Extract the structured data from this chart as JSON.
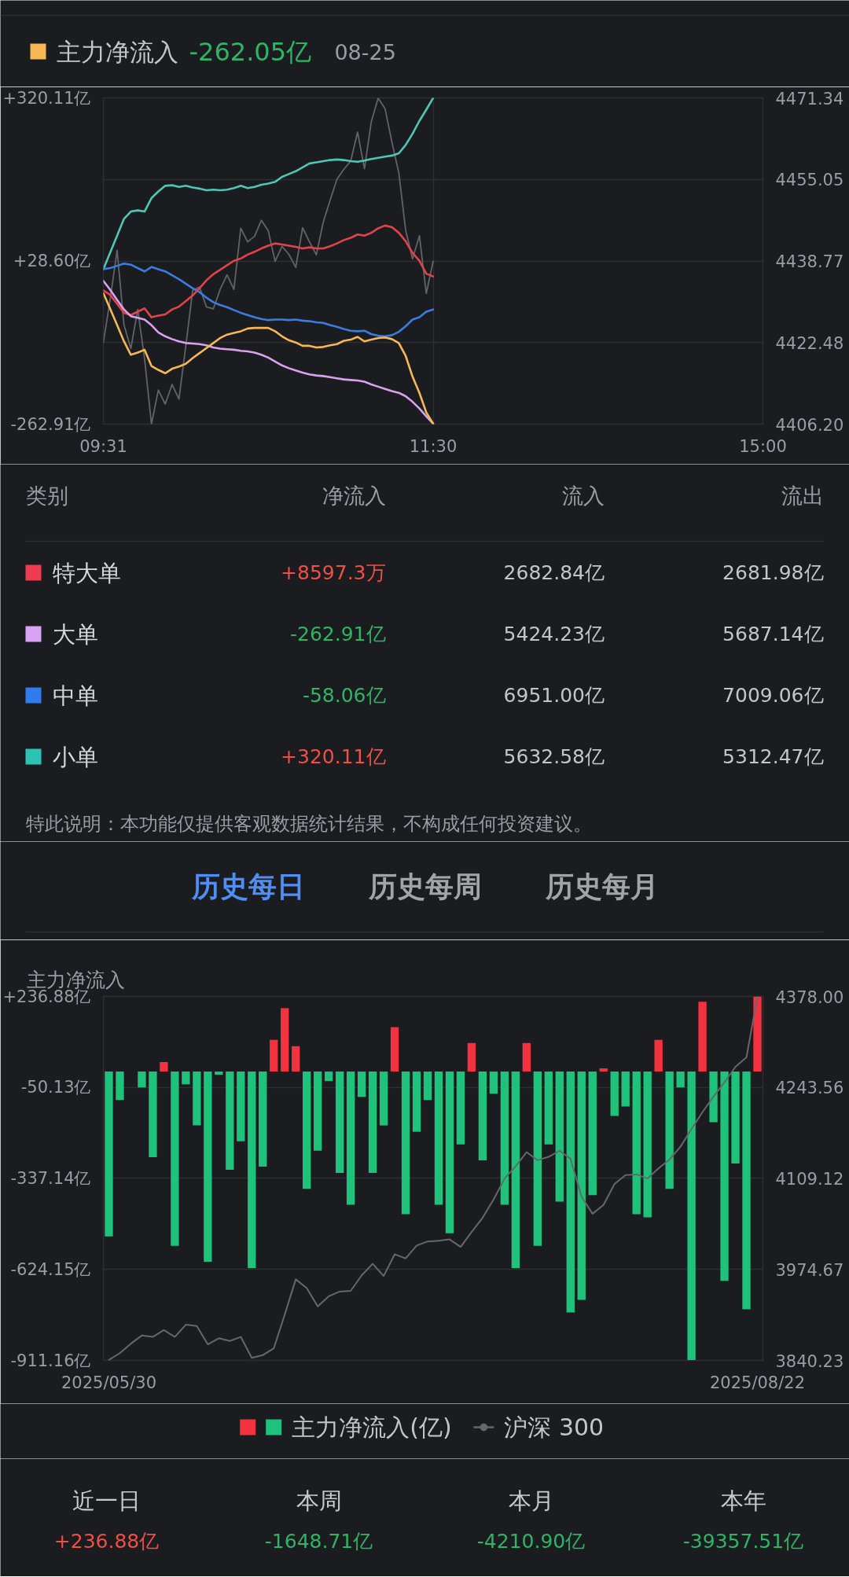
{
  "chart_data": [
    {
      "type": "line",
      "legend": "top left",
      "annotations": [
        "-262.05亿",
        "08-25"
      ],
      "categories": [
        "09:31",
        null,
        null,
        null,
        null,
        null,
        null,
        null,
        null,
        null,
        null,
        null,
        null,
        null,
        null,
        null,
        null,
        null,
        null,
        null,
        null,
        null,
        null,
        null,
        null,
        null,
        null,
        null,
        null,
        null,
        null,
        null,
        null,
        null,
        null,
        null,
        null,
        null,
        null,
        null,
        null,
        null,
        null,
        null,
        null,
        null,
        null,
        null,
        "11:30",
        null,
        null,
        null,
        null,
        null,
        null,
        null,
        null,
        null,
        null,
        null,
        null,
        null,
        null,
        null,
        null,
        null,
        null,
        null,
        null,
        null,
        null,
        null,
        null,
        null,
        null,
        null,
        null,
        null,
        null,
        null,
        null,
        null,
        null,
        null,
        null,
        null,
        null,
        null,
        null,
        null,
        null,
        null,
        null,
        null,
        null,
        null,
        "15:00"
      ],
      "ylim": [
        -262.91,
        320.11
      ],
      "yticks": [
        {
          "value": 320.11,
          "label": "+320.11亿"
        },
        {
          "value": 28.6,
          "label": "+28.60亿"
        },
        {
          "value": -262.91,
          "label": "-262.91亿"
        }
      ],
      "y2lim": [
        4406.2,
        4471.34
      ],
      "y2ticks": [
        4471.34,
        4455.05,
        4438.77,
        4422.48,
        {
          "value": 4406.2,
          "label": "4406.20"
        }
      ],
      "grid": true,
      "series": [
        {
          "color": "#626368",
          "axis": "y2",
          "values": [
            4422.5,
            4431.2,
            4440.9,
            4426.0,
            4421.3,
            4429.1,
            4419.2,
            4406.2,
            4413.0,
            4410.2,
            4414.1,
            4411.2,
            4421.8,
            4432.9,
            4433.6,
            4429.6,
            4429.2,
            4433.1,
            4436.0,
            4433.1,
            4445.3,
            4442.6,
            4443.7,
            4446.9,
            4444.8,
            4438.7,
            4441.7,
            4440.1,
            4437.5,
            4445.4,
            4442.6,
            4440.0,
            4446.5,
            4450.9,
            4455.1,
            4457.1,
            4458.7,
            4464.5,
            4457.2,
            4466.6,
            4471.3,
            4469.2,
            4462.5,
            4456.4,
            4444.9,
            4439.2,
            4443.8,
            4432.3,
            4438.7,
            null,
            null,
            null,
            null,
            null,
            null,
            null,
            null,
            null,
            null,
            null,
            null,
            null,
            null,
            null,
            null,
            null,
            null,
            null,
            null,
            null,
            null,
            null,
            null,
            null,
            null,
            null,
            null,
            null,
            null,
            null,
            null,
            null,
            null,
            null,
            null,
            null,
            null,
            null,
            null,
            null,
            null,
            null,
            null,
            null,
            null,
            null,
            null
          ]
        },
        {
          "color": "#4ec6b5",
          "values": [
            14,
            44,
            74,
            104,
            117,
            119,
            117,
            141,
            153,
            163,
            164,
            161,
            163,
            160,
            158,
            155,
            156,
            155,
            156,
            159,
            163,
            159,
            161,
            165,
            167,
            170,
            179,
            184,
            189,
            196,
            203,
            205,
            207,
            209,
            210,
            209,
            207,
            206,
            208,
            211,
            213,
            215,
            217,
            221,
            236,
            256,
            279,
            299,
            320,
            null,
            null,
            null,
            null,
            null,
            null,
            null,
            null,
            null,
            null,
            null,
            null,
            null,
            null,
            null,
            null,
            null,
            null,
            null,
            null,
            null,
            null,
            null,
            null,
            null,
            null,
            null,
            null,
            null,
            null,
            null,
            null,
            null,
            null,
            null,
            null,
            null,
            null,
            null,
            null,
            null,
            null,
            null,
            null,
            null,
            null,
            null,
            null
          ]
        },
        {
          "color": "#3a7ce2",
          "values": [
            14,
            16,
            20,
            24,
            22,
            16,
            10,
            18,
            14,
            10,
            3,
            -4,
            -12,
            -20,
            -27,
            -37,
            -45,
            -50,
            -54,
            -59,
            -64,
            -68,
            -72,
            -75,
            -77,
            -76,
            -76,
            -77,
            -76,
            -78,
            -79,
            -81,
            -82,
            -86,
            -89,
            -93,
            -96,
            -97,
            -96,
            -102,
            -105,
            -106,
            -104,
            -98,
            -88,
            -76,
            -72,
            -62,
            -58,
            null,
            null,
            null,
            null,
            null,
            null,
            null,
            null,
            null,
            null,
            null,
            null,
            null,
            null,
            null,
            null,
            null,
            null,
            null,
            null,
            null,
            null,
            null,
            null,
            null,
            null,
            null,
            null,
            null,
            null,
            null,
            null,
            null,
            null,
            null,
            null,
            null,
            null,
            null,
            null,
            null,
            null,
            null,
            null,
            null,
            null,
            null,
            null
          ]
        },
        {
          "color": "#e0434c",
          "values": [
            -24,
            -32,
            -48,
            -64,
            -68,
            -62,
            -56,
            -72,
            -69,
            -67,
            -58,
            -53,
            -43,
            -33,
            -20,
            -6,
            5,
            13,
            21,
            29,
            33,
            40,
            45,
            51,
            56,
            60,
            58,
            56,
            54,
            51,
            53,
            51,
            51,
            55,
            60,
            66,
            70,
            76,
            74,
            79,
            87,
            92,
            89,
            79,
            64,
            43,
            29,
            6,
            1,
            null,
            null,
            null,
            null,
            null,
            null,
            null,
            null,
            null,
            null,
            null,
            null,
            null,
            null,
            null,
            null,
            null,
            null,
            null,
            null,
            null,
            null,
            null,
            null,
            null,
            null,
            null,
            null,
            null,
            null,
            null,
            null,
            null,
            null,
            null,
            null,
            null,
            null,
            null,
            null,
            null,
            null,
            null,
            null,
            null,
            null,
            null,
            null
          ]
        },
        {
          "color": "#d8a2ef",
          "values": [
            -7,
            -23,
            -41,
            -58,
            -70,
            -73,
            -76,
            -86,
            -99,
            -106,
            -111,
            -115,
            -118,
            -119,
            -120,
            -122,
            -126,
            -128,
            -129,
            -130,
            -132,
            -133,
            -135,
            -139,
            -144,
            -151,
            -158,
            -163,
            -167,
            -171,
            -174,
            -176,
            -177,
            -179,
            -181,
            -183,
            -184,
            -185,
            -187,
            -192,
            -196,
            -200,
            -204,
            -207,
            -213,
            -223,
            -235,
            -249,
            -262,
            null,
            null,
            null,
            null,
            null,
            null,
            null,
            null,
            null,
            null,
            null,
            null,
            null,
            null,
            null,
            null,
            null,
            null,
            null,
            null,
            null,
            null,
            null,
            null,
            null,
            null,
            null,
            null,
            null,
            null,
            null,
            null,
            null,
            null,
            null,
            null,
            null,
            null,
            null,
            null,
            null,
            null,
            null,
            null,
            null,
            null,
            null,
            null
          ]
        },
        {
          "name": "主力净流入",
          "color": "#f5b855",
          "values": [
            -29,
            -57,
            -86,
            -115,
            -139,
            -135,
            -130,
            -159,
            -166,
            -172,
            -164,
            -160,
            -155,
            -145,
            -136,
            -127,
            -118,
            -109,
            -103,
            -100,
            -97,
            -92,
            -91,
            -91,
            -91,
            -97,
            -106,
            -113,
            -117,
            -123,
            -123,
            -126,
            -125,
            -122,
            -120,
            -114,
            -112,
            -107,
            -115,
            -112,
            -109,
            -108,
            -111,
            -118,
            -141,
            -178,
            -207,
            -242,
            -262,
            null,
            null,
            null,
            null,
            null,
            null,
            null,
            null,
            null,
            null,
            null,
            null,
            null,
            null,
            null,
            null,
            null,
            null,
            null,
            null,
            null,
            null,
            null,
            null,
            null,
            null,
            null,
            null,
            null,
            null,
            null,
            null,
            null,
            null,
            null,
            null,
            null,
            null,
            null,
            null,
            null,
            null,
            null,
            null,
            null,
            null,
            null,
            null
          ]
        }
      ]
    },
    {
      "type": "other",
      "ylabel": "类别",
      "categories": [
        "特大单",
        "大单",
        "中单",
        "小单"
      ],
      "colors": [
        "#f03a4f",
        "#d8a2f5",
        "#2f7bf0",
        "#2cc2b4"
      ],
      "series": [
        {
          "name": "净流入",
          "values": [
            8597.3,
            -262.91,
            -58.06,
            320.11
          ],
          "value_labels": [
            "+8597.3万",
            "-262.91亿",
            "-58.06亿",
            "+320.11亿"
          ]
        },
        {
          "name": "流入",
          "values": [
            2682.84,
            5424.23,
            6951.0,
            5632.58
          ],
          "value_labels": [
            "2682.84亿",
            "5424.23亿",
            "6951.00亿",
            "5632.58亿"
          ]
        },
        {
          "name": "流出",
          "values": [
            2681.98,
            5687.14,
            7009.06,
            5312.47
          ],
          "value_labels": [
            "2681.98亿",
            "5687.14亿",
            "7009.06亿",
            "5312.47亿"
          ]
        }
      ],
      "annotations": [
        "特此说明：本功能仅提供客观数据统计结果，不构成任何投资建议。"
      ]
    },
    {
      "type": "other",
      "categories": [
        "历史每日",
        "历史每周",
        "历史每月"
      ]
    },
    {
      "type": "bar",
      "title": "主力净流入",
      "legend": "bottom",
      "grid": "y",
      "categories": [
        "2025/05/30",
        null,
        null,
        null,
        null,
        null,
        null,
        null,
        null,
        null,
        null,
        null,
        null,
        null,
        null,
        null,
        null,
        null,
        null,
        null,
        null,
        null,
        null,
        null,
        null,
        null,
        null,
        null,
        null,
        null,
        null,
        null,
        null,
        null,
        null,
        null,
        null,
        null,
        null,
        null,
        null,
        null,
        null,
        null,
        null,
        null,
        null,
        null,
        null,
        null,
        null,
        null,
        null,
        null,
        null,
        null,
        null,
        null,
        null,
        "2025/08/22"
      ],
      "ylim": [
        -911.16,
        236.88
      ],
      "yticks": [
        {
          "value": 236.88,
          "label": "+236.88亿"
        },
        {
          "value": -50.13,
          "label": "-50.13亿"
        },
        {
          "value": -337.14,
          "label": "-337.14亿"
        },
        {
          "value": -624.15,
          "label": "-624.15亿"
        },
        {
          "value": -911.16,
          "label": "-911.16亿"
        }
      ],
      "y2lim": [
        3840.23,
        4378.0
      ],
      "y2ticks": [
        {
          "value": 4378.0,
          "label": "4378.00"
        },
        4243.56,
        4109.12,
        3974.67,
        3840.23
      ],
      "series": [
        {
          "name": "主力净流入(亿)",
          "values": [
            -520,
            -90,
            null,
            -50,
            -270,
            30,
            -550,
            -40,
            -170,
            -600,
            -10,
            -310,
            -220,
            -620,
            -300,
            100,
            200,
            80,
            -370,
            -250,
            -30,
            -320,
            -420,
            -80,
            -320,
            -170,
            140,
            -450,
            -190,
            -90,
            -420,
            -510,
            -230,
            90,
            -280,
            -70,
            -420,
            -620,
            90,
            -550,
            -230,
            -410,
            -760,
            -720,
            -390,
            10,
            -140,
            -110,
            -450,
            -460,
            100,
            -370,
            -50,
            -910,
            220,
            -160,
            -660,
            -290,
            -750,
            236
          ],
          "colors": [
            "#1ec27b",
            "#1ec27b",
            "#1ec27b",
            "#1ec27b",
            "#1ec27b",
            "#f2333f",
            "#1ec27b",
            "#1ec27b",
            "#1ec27b",
            "#1ec27b",
            "#1ec27b",
            "#1ec27b",
            "#1ec27b",
            "#1ec27b",
            "#1ec27b",
            "#f2333f",
            "#f2333f",
            "#f2333f",
            "#1ec27b",
            "#1ec27b",
            "#1ec27b",
            "#1ec27b",
            "#1ec27b",
            "#1ec27b",
            "#1ec27b",
            "#1ec27b",
            "#f2333f",
            "#1ec27b",
            "#1ec27b",
            "#1ec27b",
            "#1ec27b",
            "#1ec27b",
            "#1ec27b",
            "#f2333f",
            "#1ec27b",
            "#1ec27b",
            "#1ec27b",
            "#1ec27b",
            "#f2333f",
            "#1ec27b",
            "#1ec27b",
            "#1ec27b",
            "#1ec27b",
            "#1ec27b",
            "#1ec27b",
            "#f2333f",
            "#1ec27b",
            "#1ec27b",
            "#1ec27b",
            "#1ec27b",
            "#f2333f",
            "#1ec27b",
            "#1ec27b",
            "#1ec27b",
            "#f2333f",
            "#1ec27b",
            "#1ec27b",
            "#1ec27b",
            "#1ec27b",
            "#f2333f"
          ]
        },
        {
          "type": "line",
          "name": "沪深 300",
          "color": "#66676b",
          "axis": "y2",
          "values": [
            3841,
            3851,
            3865,
            3877,
            3875,
            3885,
            3875,
            3893,
            3891,
            3864,
            3873,
            3869,
            3875,
            3844,
            3848,
            3858,
            3908,
            3960,
            3947,
            3920,
            3935,
            3942,
            3943,
            3966,
            3983,
            3965,
            3997,
            3991,
            4010,
            4016,
            4017,
            4019,
            4008,
            4030,
            4051,
            4078,
            4109,
            4127,
            4148,
            4136,
            4141,
            4150,
            4138,
            4082,
            4057,
            4070,
            4101,
            4114,
            4115,
            4109,
            4124,
            4137,
            4156,
            4182,
            4207,
            4230,
            4251,
            4274,
            4288,
            4378
          ]
        }
      ]
    },
    {
      "type": "other",
      "categories": [
        "近一日",
        "本周",
        "本月",
        "本年"
      ],
      "values": [
        236.88,
        -1648.71,
        -4210.9,
        -39357.51
      ],
      "value_labels": [
        "+236.88亿",
        "-1648.71亿",
        "-4210.90亿",
        "-39357.51亿"
      ]
    }
  ]
}
